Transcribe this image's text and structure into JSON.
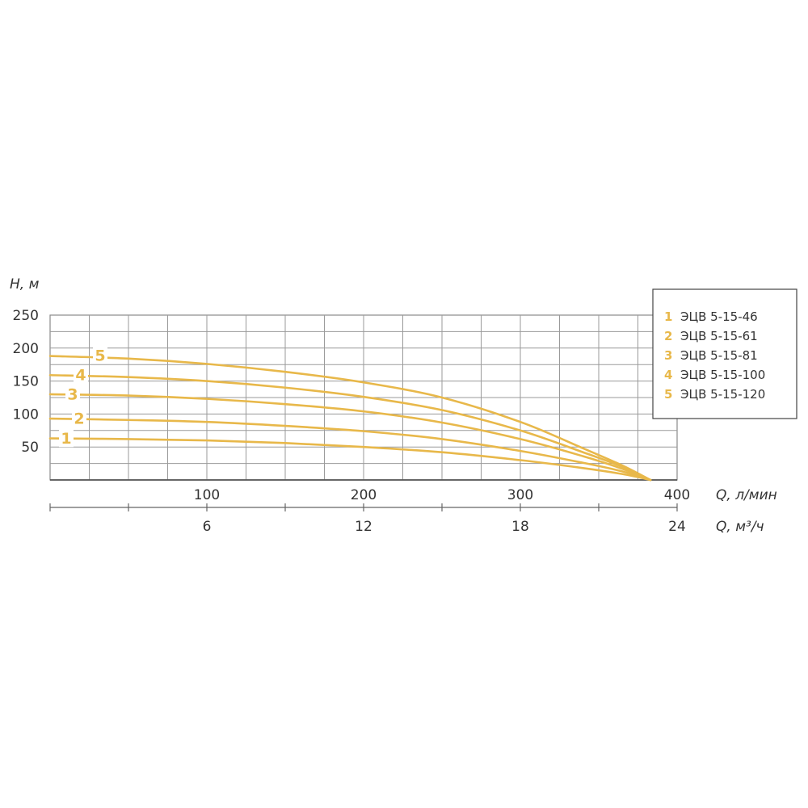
{
  "chart_data": {
    "type": "line",
    "ylabel": "H, м",
    "xlabel_primary": "Q, л/мин",
    "xlabel_secondary": "Q, м³/ч",
    "ylim": [
      0,
      250
    ],
    "xlim": [
      0,
      400
    ],
    "y_ticks": [
      50,
      100,
      150,
      200,
      250
    ],
    "x_ticks_primary": [
      100,
      200,
      300,
      400
    ],
    "x_ticks_secondary": [
      6,
      12,
      18,
      24
    ],
    "grid": true,
    "legend_position": "top-right",
    "curve_color": "#e8b84a",
    "series": [
      {
        "name": "ЭЦВ 5-15-46",
        "number": "1",
        "x": [
          0,
          50,
          100,
          150,
          200,
          250,
          300,
          340,
          365,
          383
        ],
        "y": [
          63,
          62,
          60,
          56,
          50,
          42,
          30,
          18,
          9,
          0
        ]
      },
      {
        "name": "ЭЦВ 5-15-61",
        "number": "2",
        "x": [
          0,
          50,
          100,
          150,
          200,
          250,
          300,
          340,
          365,
          383
        ],
        "y": [
          93,
          91,
          88,
          82,
          74,
          62,
          44,
          26,
          13,
          0
        ]
      },
      {
        "name": "ЭЦВ 5-15-81",
        "number": "3",
        "x": [
          0,
          50,
          100,
          150,
          200,
          250,
          300,
          340,
          365,
          383
        ],
        "y": [
          130,
          128,
          123,
          115,
          104,
          87,
          62,
          36,
          17,
          0
        ]
      },
      {
        "name": "ЭЦВ 5-15-100",
        "number": "4",
        "x": [
          0,
          50,
          100,
          150,
          200,
          250,
          300,
          340,
          365,
          383
        ],
        "y": [
          159,
          156,
          150,
          140,
          126,
          106,
          75,
          42,
          20,
          0
        ]
      },
      {
        "name": "ЭЦВ 5-15-120",
        "number": "5",
        "x": [
          0,
          50,
          100,
          150,
          200,
          250,
          300,
          340,
          365,
          383
        ],
        "y": [
          188,
          184,
          176,
          164,
          148,
          125,
          88,
          48,
          22,
          0
        ]
      }
    ]
  }
}
